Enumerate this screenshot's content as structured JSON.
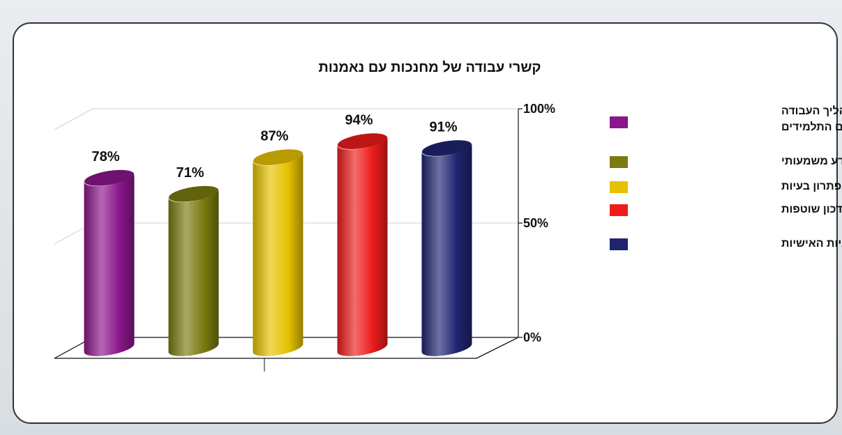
{
  "chart_data": {
    "type": "bar",
    "title": "קשרי עבודה של מחנכות עם נאמנות",
    "categories": [
      "מעורבות פעילה בתהליך העבודה עם התלמידים",
      "שיתוף מצד המחנכת במידע משמעותי",
      "סיוע הנאמנה בפתרון בעיות",
      "פגישות עדכון שוטפות",
      "מעורבות בבניית התכניות האישיות"
    ],
    "values": [
      78,
      71,
      87,
      94,
      91
    ],
    "data_labels": [
      "78%",
      "71%",
      "87%",
      "94%",
      "91%"
    ],
    "colors": [
      "#8b168b",
      "#7a7a10",
      "#e6c200",
      "#ee1c1c",
      "#1f2470"
    ],
    "ylim": [
      0,
      100
    ],
    "y_ticks": [
      "0%",
      "50%",
      "100%"
    ],
    "legend": {
      "placement": "right",
      "entries": [
        {
          "lines": [
            "מעורבות פעילה בתהליך העבודה",
            "עם התלמידים"
          ],
          "color": "#8b168b"
        },
        {
          "lines": [
            "שיתוף מצד המחנכת במידע משמעותי"
          ],
          "color": "#7a7a10"
        },
        {
          "lines": [
            "סיוע הנאמנה בפתרון בעיות"
          ],
          "color": "#e6c200"
        },
        {
          "lines": [
            "פגישות עדכון שוטפות"
          ],
          "color": "#ee1c1c"
        },
        {
          "lines": [
            "מעורבות בבניית התכניות האישיות"
          ],
          "color": "#1f2470"
        }
      ]
    },
    "grid": true
  }
}
